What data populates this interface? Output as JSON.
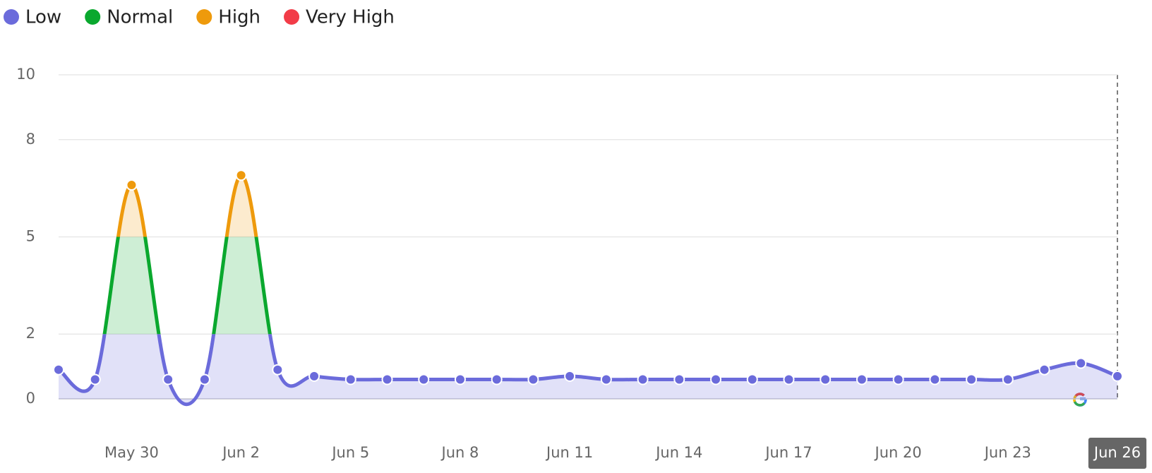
{
  "chart_data": {
    "type": "line",
    "categories": [
      null,
      null,
      "May 30",
      null,
      null,
      "Jun 2",
      null,
      null,
      "Jun 5",
      null,
      null,
      "Jun 8",
      null,
      null,
      "Jun 11",
      null,
      null,
      "Jun 14",
      null,
      null,
      "Jun 17",
      null,
      null,
      "Jun 20",
      null,
      null,
      "Jun 23",
      null,
      null,
      "Jun 26"
    ],
    "values": [
      0.9,
      0.6,
      6.6,
      0.6,
      0.6,
      6.9,
      0.9,
      0.7,
      0.6,
      0.6,
      0.6,
      0.6,
      0.6,
      0.6,
      0.7,
      0.6,
      0.6,
      0.6,
      0.6,
      0.6,
      0.6,
      0.6,
      0.6,
      0.6,
      0.6,
      0.6,
      0.6,
      0.9,
      1.1,
      0.7
    ],
    "ylim": [
      0,
      10
    ],
    "yticks": [
      0,
      2,
      5,
      8,
      10
    ],
    "grid": true,
    "legend": [
      {
        "name": "Low",
        "color": "#6b6bdb",
        "range": [
          0,
          2
        ]
      },
      {
        "name": "Normal",
        "color": "#0aa82e",
        "range": [
          2,
          5
        ]
      },
      {
        "name": "High",
        "color": "#ee9a0c",
        "range": [
          5,
          8
        ]
      },
      {
        "name": "Very High",
        "color": "#f23c48",
        "range": [
          8,
          10
        ]
      }
    ]
  }
}
